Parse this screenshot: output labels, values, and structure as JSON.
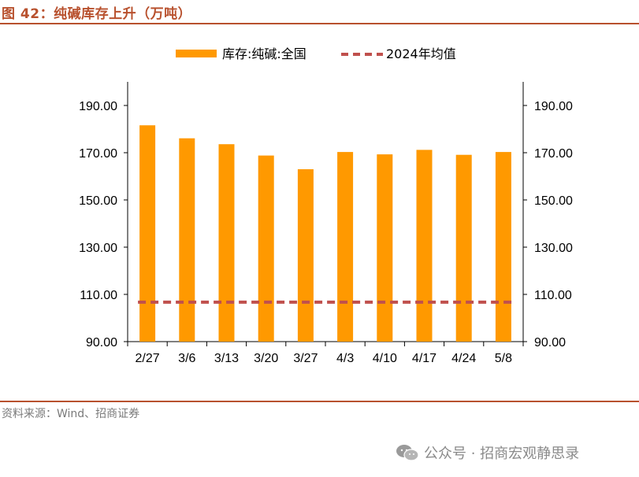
{
  "header": {
    "title": "图 42：纯碱库存上升（万吨）"
  },
  "footer": {
    "source": "资料来源：Wind、招商证券",
    "watermark": "公众号 · 招商宏观静思录"
  },
  "colors": {
    "bar": "#FF9900",
    "avg_line": "#C0504D",
    "accent": "#B8512E"
  },
  "chart_data": {
    "type": "bar",
    "title": "",
    "xlabel": "",
    "ylabel": "",
    "categories": [
      "2/27",
      "3/6",
      "3/13",
      "3/20",
      "3/27",
      "4/3",
      "4/10",
      "4/17",
      "4/24",
      "5/8"
    ],
    "series": [
      {
        "name": "库存:纯碱:全国",
        "type": "bar",
        "values": [
          181.6,
          176.1,
          173.6,
          168.8,
          163.0,
          170.3,
          169.3,
          171.2,
          169.1,
          170.3
        ]
      },
      {
        "name": "2024年均值",
        "type": "line",
        "style": "dashed",
        "values": [
          106.7,
          106.7,
          106.7,
          106.7,
          106.7,
          106.7,
          106.7,
          106.7,
          106.7,
          106.7
        ]
      }
    ],
    "ylim": [
      90,
      200
    ],
    "yticks": [
      "90.00",
      "110.00",
      "130.00",
      "150.00",
      "170.00",
      "190.00"
    ],
    "secondary_yticks": [
      "90.00",
      "110.00",
      "130.00",
      "150.00",
      "170.00",
      "190.00"
    ],
    "legend_position": "top",
    "grid": false
  }
}
